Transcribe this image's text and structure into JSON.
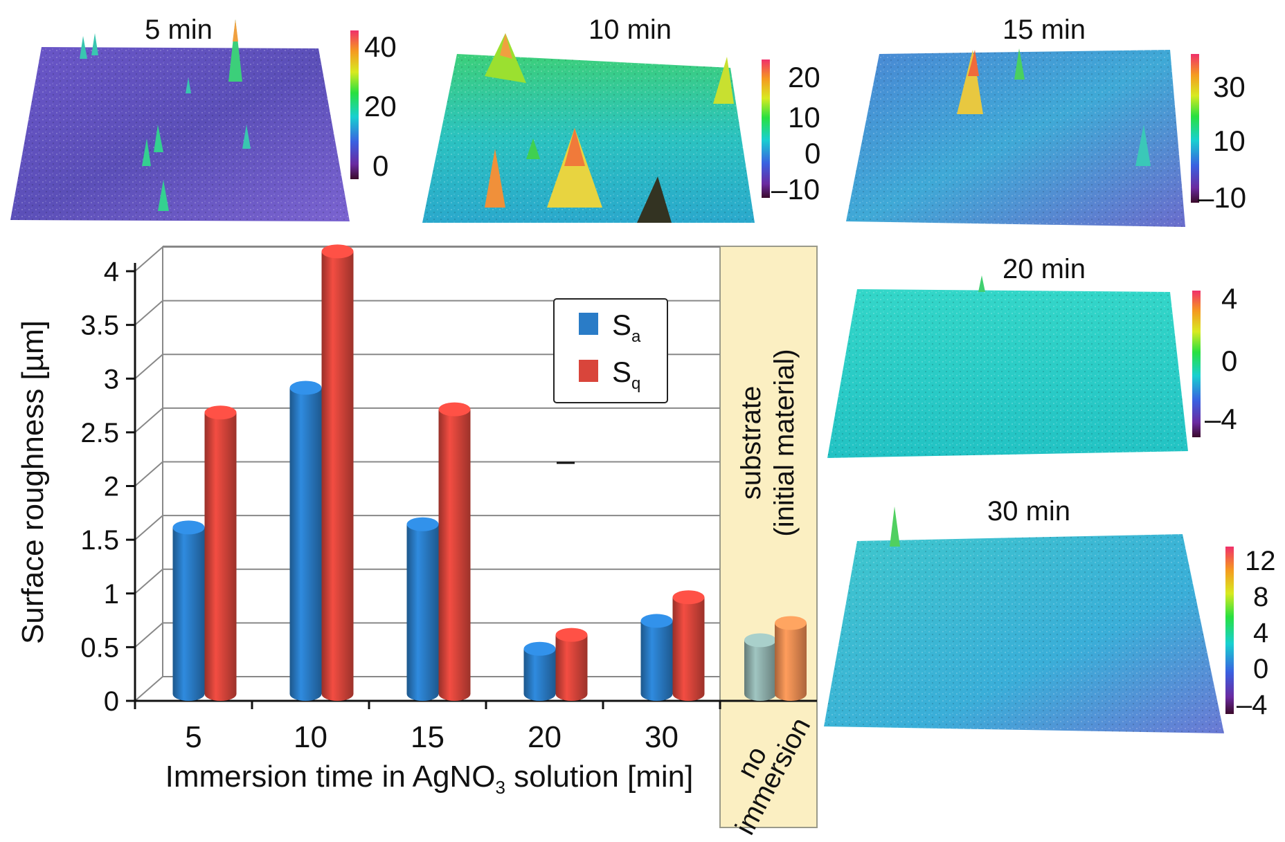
{
  "chart_data": {
    "type": "bar",
    "style": "3d-cylinder",
    "xlabel_main": "Immersion time in AgNO",
    "xlabel_sub": "3",
    "xlabel_tail": " solution [min]",
    "ylabel": "Surface roughness [µm]",
    "ylim": [
      0,
      4
    ],
    "yticks": [
      "0",
      "0.5",
      "1",
      "1.5",
      "2",
      "2.5",
      "3",
      "3.5",
      "4"
    ],
    "grid": true,
    "categories": [
      "5",
      "10",
      "15",
      "20",
      "30"
    ],
    "series": [
      {
        "name": "Sa",
        "label_main": "S",
        "label_sub": "a",
        "color": "#2a7cc7",
        "values": [
          1.55,
          2.85,
          1.58,
          0.42,
          0.68
        ]
      },
      {
        "name": "Sq",
        "label_main": "S",
        "label_sub": "q",
        "color": "#d9453b",
        "values": [
          2.62,
          4.12,
          2.65,
          0.55,
          0.9
        ]
      }
    ],
    "substrate": {
      "category": "no immersion",
      "category_line1": "no",
      "category_line2": "immersion",
      "label_line1": "substrate",
      "label_line2": "(initial material)",
      "panel_color": "#fbefc2",
      "values": [
        0.5,
        0.66
      ],
      "colors": [
        "#8fb0ac",
        "#ef8c52"
      ]
    },
    "legend_position": "top-right"
  },
  "surface_maps": [
    {
      "title": "5 min",
      "ticks": [
        "40",
        "20",
        "0"
      ]
    },
    {
      "title": "10 min",
      "ticks": [
        "20",
        "10",
        "0",
        "–10"
      ]
    },
    {
      "title": "15 min",
      "ticks": [
        "30",
        "10",
        "–10"
      ]
    },
    {
      "title": "20 min",
      "ticks": [
        "4",
        "0",
        "–4"
      ]
    },
    {
      "title": "30 min",
      "ticks": [
        "12",
        "8",
        "4",
        "0",
        "–4"
      ]
    }
  ]
}
